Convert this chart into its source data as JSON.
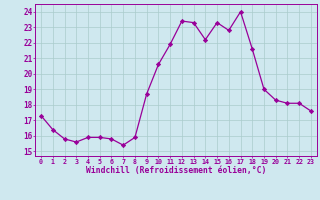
{
  "x": [
    0,
    1,
    2,
    3,
    4,
    5,
    6,
    7,
    8,
    9,
    10,
    11,
    12,
    13,
    14,
    15,
    16,
    17,
    18,
    19,
    20,
    21,
    22,
    23
  ],
  "y": [
    17.3,
    16.4,
    15.8,
    15.6,
    15.9,
    15.9,
    15.8,
    15.4,
    15.9,
    18.7,
    20.6,
    21.9,
    23.4,
    23.3,
    22.2,
    23.3,
    22.8,
    24.0,
    21.6,
    19.0,
    18.3,
    18.1,
    18.1,
    17.6
  ],
  "line_color": "#990099",
  "marker": "D",
  "marker_size": 2.2,
  "bg_color": "#cfe8ef",
  "grid_color": "#aacccc",
  "xlabel": "Windchill (Refroidissement éolien,°C)",
  "xtick_labels": [
    "0",
    "1",
    "2",
    "3",
    "4",
    "5",
    "6",
    "7",
    "8",
    "9",
    "10",
    "11",
    "12",
    "13",
    "14",
    "15",
    "16",
    "17",
    "18",
    "19",
    "20",
    "21",
    "22",
    "23"
  ],
  "ylabel_ticks": [
    15,
    16,
    17,
    18,
    19,
    20,
    21,
    22,
    23,
    24
  ],
  "xlim": [
    -0.5,
    23.5
  ],
  "ylim": [
    14.7,
    24.5
  ]
}
